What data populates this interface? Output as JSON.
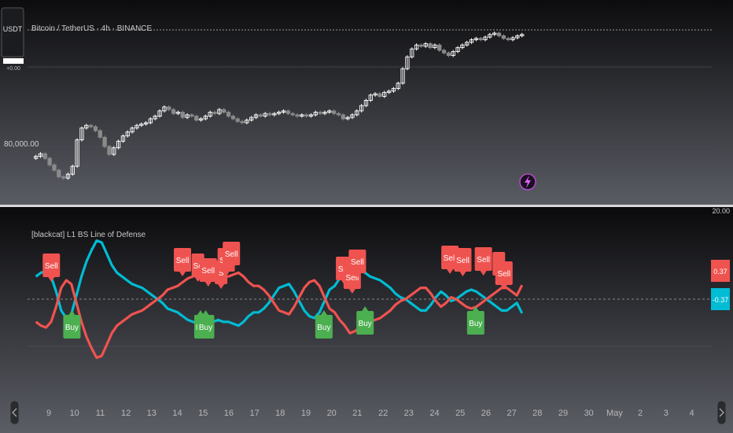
{
  "symbol_badge": "USDT",
  "symbol_sub": "+0.00",
  "main_title": "Bitcoin / TetherUS · 4h · BINANCE",
  "indicator_title": "[blackcat] L1 BS Line of Defense",
  "price_label": "80,000.00",
  "indicator_top_value": "20.00",
  "value_badges": {
    "up": "0.37",
    "down": "-0.37",
    "up_color": "#ef5350",
    "down_color": "#00bcd4"
  },
  "colors": {
    "buy": "#4caf50",
    "sell": "#ef5350",
    "line_red": "#ef5350",
    "line_cyan": "#00bcd4",
    "candle_up": "#ffffff",
    "candle_down": "#8a8a8a"
  },
  "nav_icons": {
    "left": "chevron-left-icon",
    "right": "chevron-right-icon",
    "bolt": "lightning-icon"
  },
  "chart_data": [
    {
      "type": "candlestick",
      "title": "Bitcoin / TetherUS · 4h · BINANCE",
      "ylabel": "",
      "ylim": [
        77000,
        90500
      ],
      "y_tick_labels": [
        "80,000.00"
      ],
      "grid": true,
      "x_ticks": [
        "9",
        "10",
        "11",
        "12",
        "13",
        "14",
        "15",
        "16",
        "17",
        "18",
        "19",
        "20",
        "21",
        "22",
        "23",
        "24",
        "25",
        "26",
        "27",
        "28",
        "29",
        "30",
        "May",
        "2",
        "3",
        "4"
      ],
      "x_start": 8.5,
      "closes": [
        79950,
        80150,
        79800,
        79300,
        78900,
        78400,
        78300,
        78600,
        79200,
        81200,
        82100,
        82300,
        82200,
        81900,
        81400,
        80700,
        80100,
        80600,
        81100,
        81500,
        81800,
        82100,
        82300,
        82400,
        82500,
        82800,
        83000,
        83400,
        83700,
        83500,
        83200,
        83300,
        82900,
        83100,
        83000,
        82700,
        82800,
        83000,
        83300,
        83200,
        83500,
        83300,
        83000,
        82800,
        82600,
        82500,
        82700,
        82900,
        83100,
        83000,
        83200,
        83100,
        83200,
        83300,
        83400,
        83200,
        83100,
        83000,
        83100,
        83000,
        83100,
        83300,
        83200,
        83300,
        83400,
        83200,
        83100,
        82800,
        82900,
        83100,
        83400,
        83800,
        84200,
        84600,
        84700,
        84500,
        84800,
        84900,
        85100,
        85500,
        86600,
        87500,
        88100,
        88400,
        88300,
        88500,
        88200,
        88400,
        88000,
        87800,
        87600,
        87900,
        88200,
        88400,
        88600,
        88800,
        88900,
        88800,
        89000,
        89200,
        89300,
        89100,
        88900,
        88800,
        88950,
        89100,
        89200
      ]
    },
    {
      "type": "line",
      "title": "[blackcat] L1 BS Line of Defense",
      "ylim": [
        -1.5,
        1.5
      ],
      "x_ticks": [
        "9",
        "10",
        "11",
        "12",
        "13",
        "14",
        "15",
        "16",
        "17",
        "18",
        "19",
        "20",
        "21",
        "22",
        "23",
        "24",
        "25",
        "26",
        "27",
        "28",
        "29",
        "30",
        "May",
        "2",
        "3",
        "4"
      ],
      "x_start": 8.5,
      "x_step": 0.1667,
      "series": [
        {
          "color": "#00bcd4",
          "values": [
            0.6,
            0.7,
            0.75,
            0.6,
            0.2,
            -0.3,
            -0.5,
            -0.4,
            0.1,
            0.6,
            1.0,
            1.3,
            1.55,
            1.5,
            1.2,
            0.9,
            0.7,
            0.6,
            0.5,
            0.4,
            0.35,
            0.3,
            0.2,
            0.1,
            0.0,
            -0.1,
            -0.25,
            -0.3,
            -0.35,
            -0.45,
            -0.55,
            -0.6,
            -0.65,
            -0.7,
            -0.65,
            -0.6,
            -0.55,
            -0.6,
            -0.6,
            -0.65,
            -0.7,
            -0.6,
            -0.45,
            -0.35,
            -0.35,
            -0.25,
            -0.1,
            0.1,
            0.3,
            0.35,
            0.4,
            0.2,
            -0.05,
            -0.3,
            -0.45,
            -0.5,
            -0.35,
            -0.05,
            0.25,
            0.35,
            0.55,
            0.7,
            0.9,
            0.85,
            0.75,
            0.7,
            0.6,
            0.55,
            0.5,
            0.4,
            0.3,
            0.15,
            0.05,
            0.0,
            -0.1,
            -0.2,
            -0.3,
            -0.3,
            -0.15,
            0.05,
            0.2,
            0.1,
            -0.05,
            0.0,
            0.1,
            0.2,
            0.25,
            0.2,
            0.1,
            0.0,
            -0.1,
            -0.2,
            -0.3,
            -0.3,
            -0.2,
            -0.1,
            -0.37
          ]
        },
        {
          "color": "#ef5350",
          "values": [
            -0.6,
            -0.7,
            -0.75,
            -0.6,
            -0.2,
            0.3,
            0.5,
            0.4,
            -0.1,
            -0.6,
            -1.0,
            -1.3,
            -1.55,
            -1.5,
            -1.2,
            -0.9,
            -0.7,
            -0.6,
            -0.5,
            -0.4,
            -0.35,
            -0.3,
            -0.2,
            -0.1,
            0.0,
            0.1,
            0.25,
            0.3,
            0.35,
            0.45,
            0.55,
            0.6,
            0.65,
            0.7,
            0.65,
            0.6,
            0.55,
            0.6,
            0.6,
            0.65,
            0.7,
            0.6,
            0.45,
            0.35,
            0.35,
            0.25,
            0.1,
            -0.1,
            -0.3,
            -0.35,
            -0.4,
            -0.2,
            0.05,
            0.3,
            0.45,
            0.5,
            0.35,
            0.05,
            -0.25,
            -0.35,
            -0.55,
            -0.7,
            -0.9,
            -0.85,
            -0.75,
            -0.7,
            -0.6,
            -0.55,
            -0.5,
            -0.4,
            -0.3,
            -0.15,
            -0.05,
            0.0,
            0.1,
            0.2,
            0.3,
            0.3,
            0.15,
            -0.05,
            -0.2,
            -0.1,
            0.05,
            0.0,
            -0.1,
            -0.2,
            -0.25,
            -0.2,
            -0.1,
            0.0,
            0.1,
            0.2,
            0.3,
            0.3,
            0.2,
            0.1,
            0.37
          ]
        }
      ],
      "signals": [
        {
          "label": "Sell",
          "x": 9.1,
          "kind": "sell"
        },
        {
          "label": "Buy",
          "x": 9.9,
          "kind": "buy"
        },
        {
          "label": "Sell",
          "x": 14.2,
          "kind": "sell"
        },
        {
          "label": "Se",
          "x": 14.8,
          "kind": "sell"
        },
        {
          "label": "Sell",
          "x": 15.2,
          "kind": "sell"
        },
        {
          "label": "Bu",
          "x": 14.9,
          "kind": "buy"
        },
        {
          "label": "Buy",
          "x": 15.1,
          "kind": "buy"
        },
        {
          "label": "S",
          "x": 15.7,
          "kind": "sell"
        },
        {
          "label": "Sell",
          "x": 15.9,
          "kind": "sell"
        },
        {
          "label": "Sell",
          "x": 16.1,
          "kind": "sell"
        },
        {
          "label": "Buy",
          "x": 19.7,
          "kind": "buy"
        },
        {
          "label": "Sell",
          "x": 20.5,
          "kind": "sell"
        },
        {
          "label": "Sell",
          "x": 20.8,
          "kind": "sell"
        },
        {
          "label": "Sell",
          "x": 21.0,
          "kind": "sell"
        },
        {
          "label": "Buy",
          "x": 21.3,
          "kind": "buy"
        },
        {
          "label": "Sell",
          "x": 24.6,
          "kind": "sell"
        },
        {
          "label": "Sell",
          "x": 25.1,
          "kind": "sell"
        },
        {
          "label": "Buy",
          "x": 25.6,
          "kind": "buy"
        },
        {
          "label": "Sell",
          "x": 25.9,
          "kind": "sell"
        },
        {
          "label": "S",
          "x": 26.5,
          "kind": "sell"
        },
        {
          "label": "Sell",
          "x": 26.7,
          "kind": "sell"
        }
      ]
    }
  ]
}
